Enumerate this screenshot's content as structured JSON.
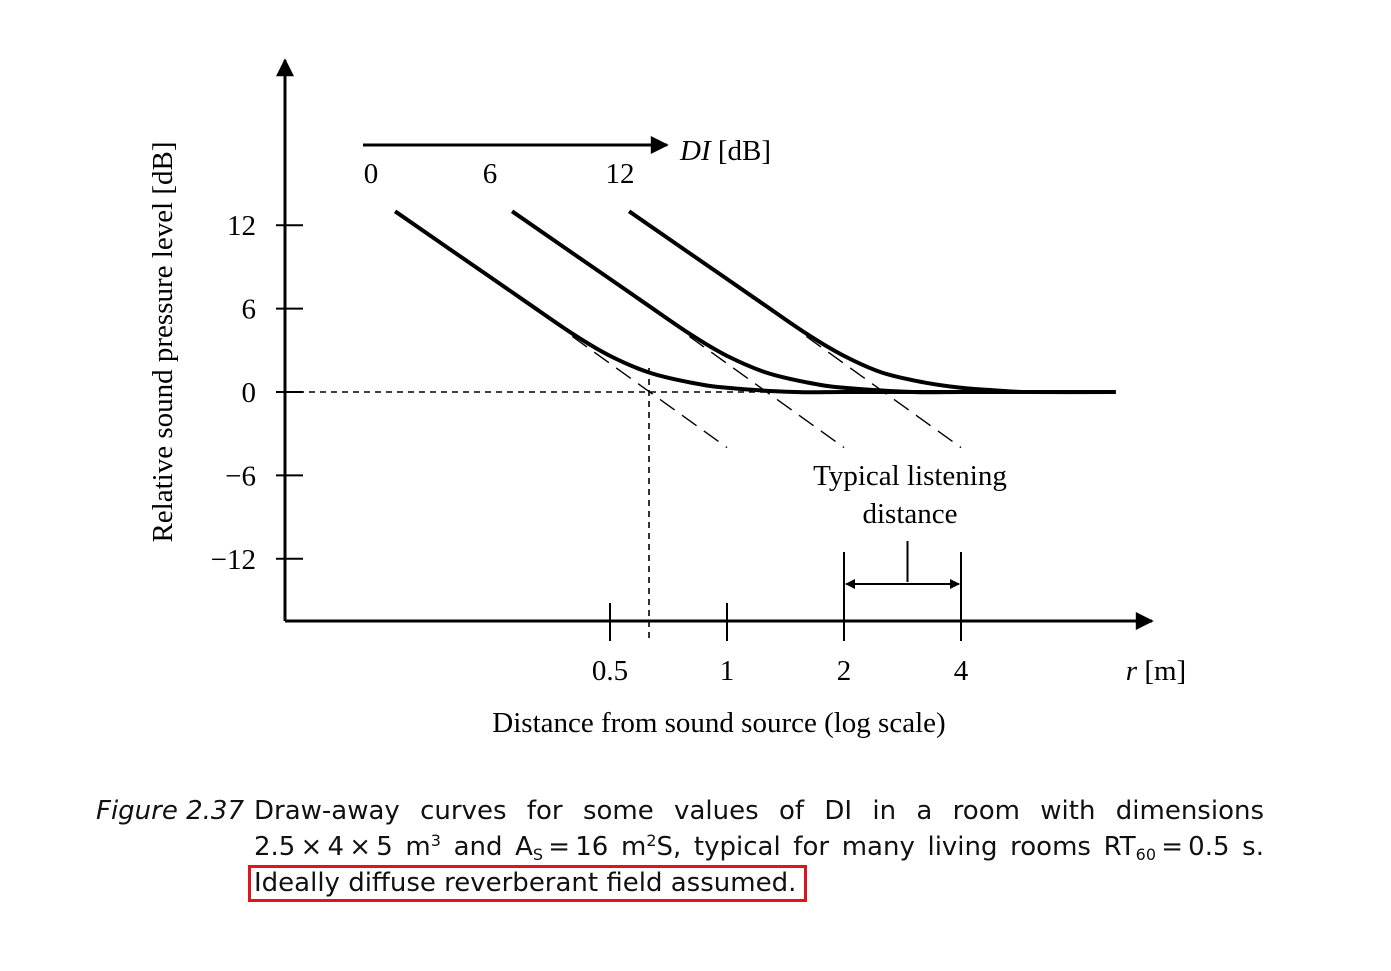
{
  "chart_data": {
    "type": "line",
    "title": "",
    "xlabel": "Distance from sound source (log scale)",
    "x_unit_label": "r [m]",
    "x_scale": "log",
    "x_ticks": [
      0.5,
      1,
      2,
      4
    ],
    "x_tick_labels": [
      "0.5",
      "1",
      "2",
      "4"
    ],
    "ylabel": "Relative sound pressure level [dB]",
    "y_ticks": [
      12,
      6,
      0,
      -6,
      -12
    ],
    "y_tick_labels": [
      "12",
      "6",
      "0",
      "−6",
      "−12"
    ],
    "ylim": [
      -16,
      18
    ],
    "di_axis_label": "DI [dB]",
    "di_labels": [
      "0",
      "6",
      "12"
    ],
    "critical_distance_marker": 0.63,
    "series": [
      {
        "di": 0,
        "x": [
          0.14,
          0.2,
          0.3,
          0.4,
          0.5,
          0.63,
          0.8,
          1.0,
          1.5,
          2.0,
          3.0,
          5.0,
          10.0
        ],
        "values": [
          13.0,
          10.0,
          6.6,
          4.2,
          2.6,
          1.4,
          0.7,
          0.3,
          0.0,
          0.0,
          0.0,
          0.0,
          0.0
        ]
      },
      {
        "di": 6,
        "x": [
          0.28,
          0.4,
          0.6,
          0.8,
          1.0,
          1.26,
          1.6,
          2.0,
          3.0,
          4.0,
          6.0,
          10.0
        ],
        "values": [
          13.0,
          10.0,
          6.6,
          4.2,
          2.6,
          1.4,
          0.7,
          0.3,
          0.0,
          0.0,
          0.0,
          0.0
        ]
      },
      {
        "di": 12,
        "x": [
          0.56,
          0.8,
          1.2,
          1.6,
          2.0,
          2.5,
          3.2,
          4.0,
          5.0,
          6.0,
          10.0
        ],
        "values": [
          13.0,
          10.0,
          6.6,
          4.2,
          2.6,
          1.4,
          0.7,
          0.3,
          0.1,
          0.0,
          0.0
        ]
      }
    ],
    "direct_field_asymptotes": [
      {
        "di": 0,
        "x": [
          0.4,
          1.0
        ],
        "values": [
          4.0,
          -4.0
        ]
      },
      {
        "di": 6,
        "x": [
          0.8,
          2.0
        ],
        "values": [
          4.0,
          -4.0
        ]
      },
      {
        "di": 12,
        "x": [
          1.6,
          4.0
        ],
        "values": [
          4.0,
          -4.0
        ]
      }
    ],
    "annotations": {
      "listening_distance_line1": "Typical listening",
      "listening_distance_line2": "distance",
      "listening_range": [
        2,
        4
      ]
    },
    "grid": false,
    "legend": "none"
  },
  "caption": {
    "label": "Figure 2.37",
    "line1_text": "Draw-away curves for some values of DI in a room with dimensions",
    "line2_a": "2.5 × 4 × 5 m",
    "sup_3": "3",
    "line2_b": " and A",
    "sub_s": "S",
    "line2_c": " = 16 m",
    "sup_2": "2",
    "line2_d": "S, typical for many living rooms RT",
    "sub_60": "60",
    "line2_e": " = 0.5 s.",
    "line3_text": "Ideally diffuse reverberant field assumed."
  },
  "colors": {
    "ink": "#000000",
    "highlight": "#e0141e"
  }
}
